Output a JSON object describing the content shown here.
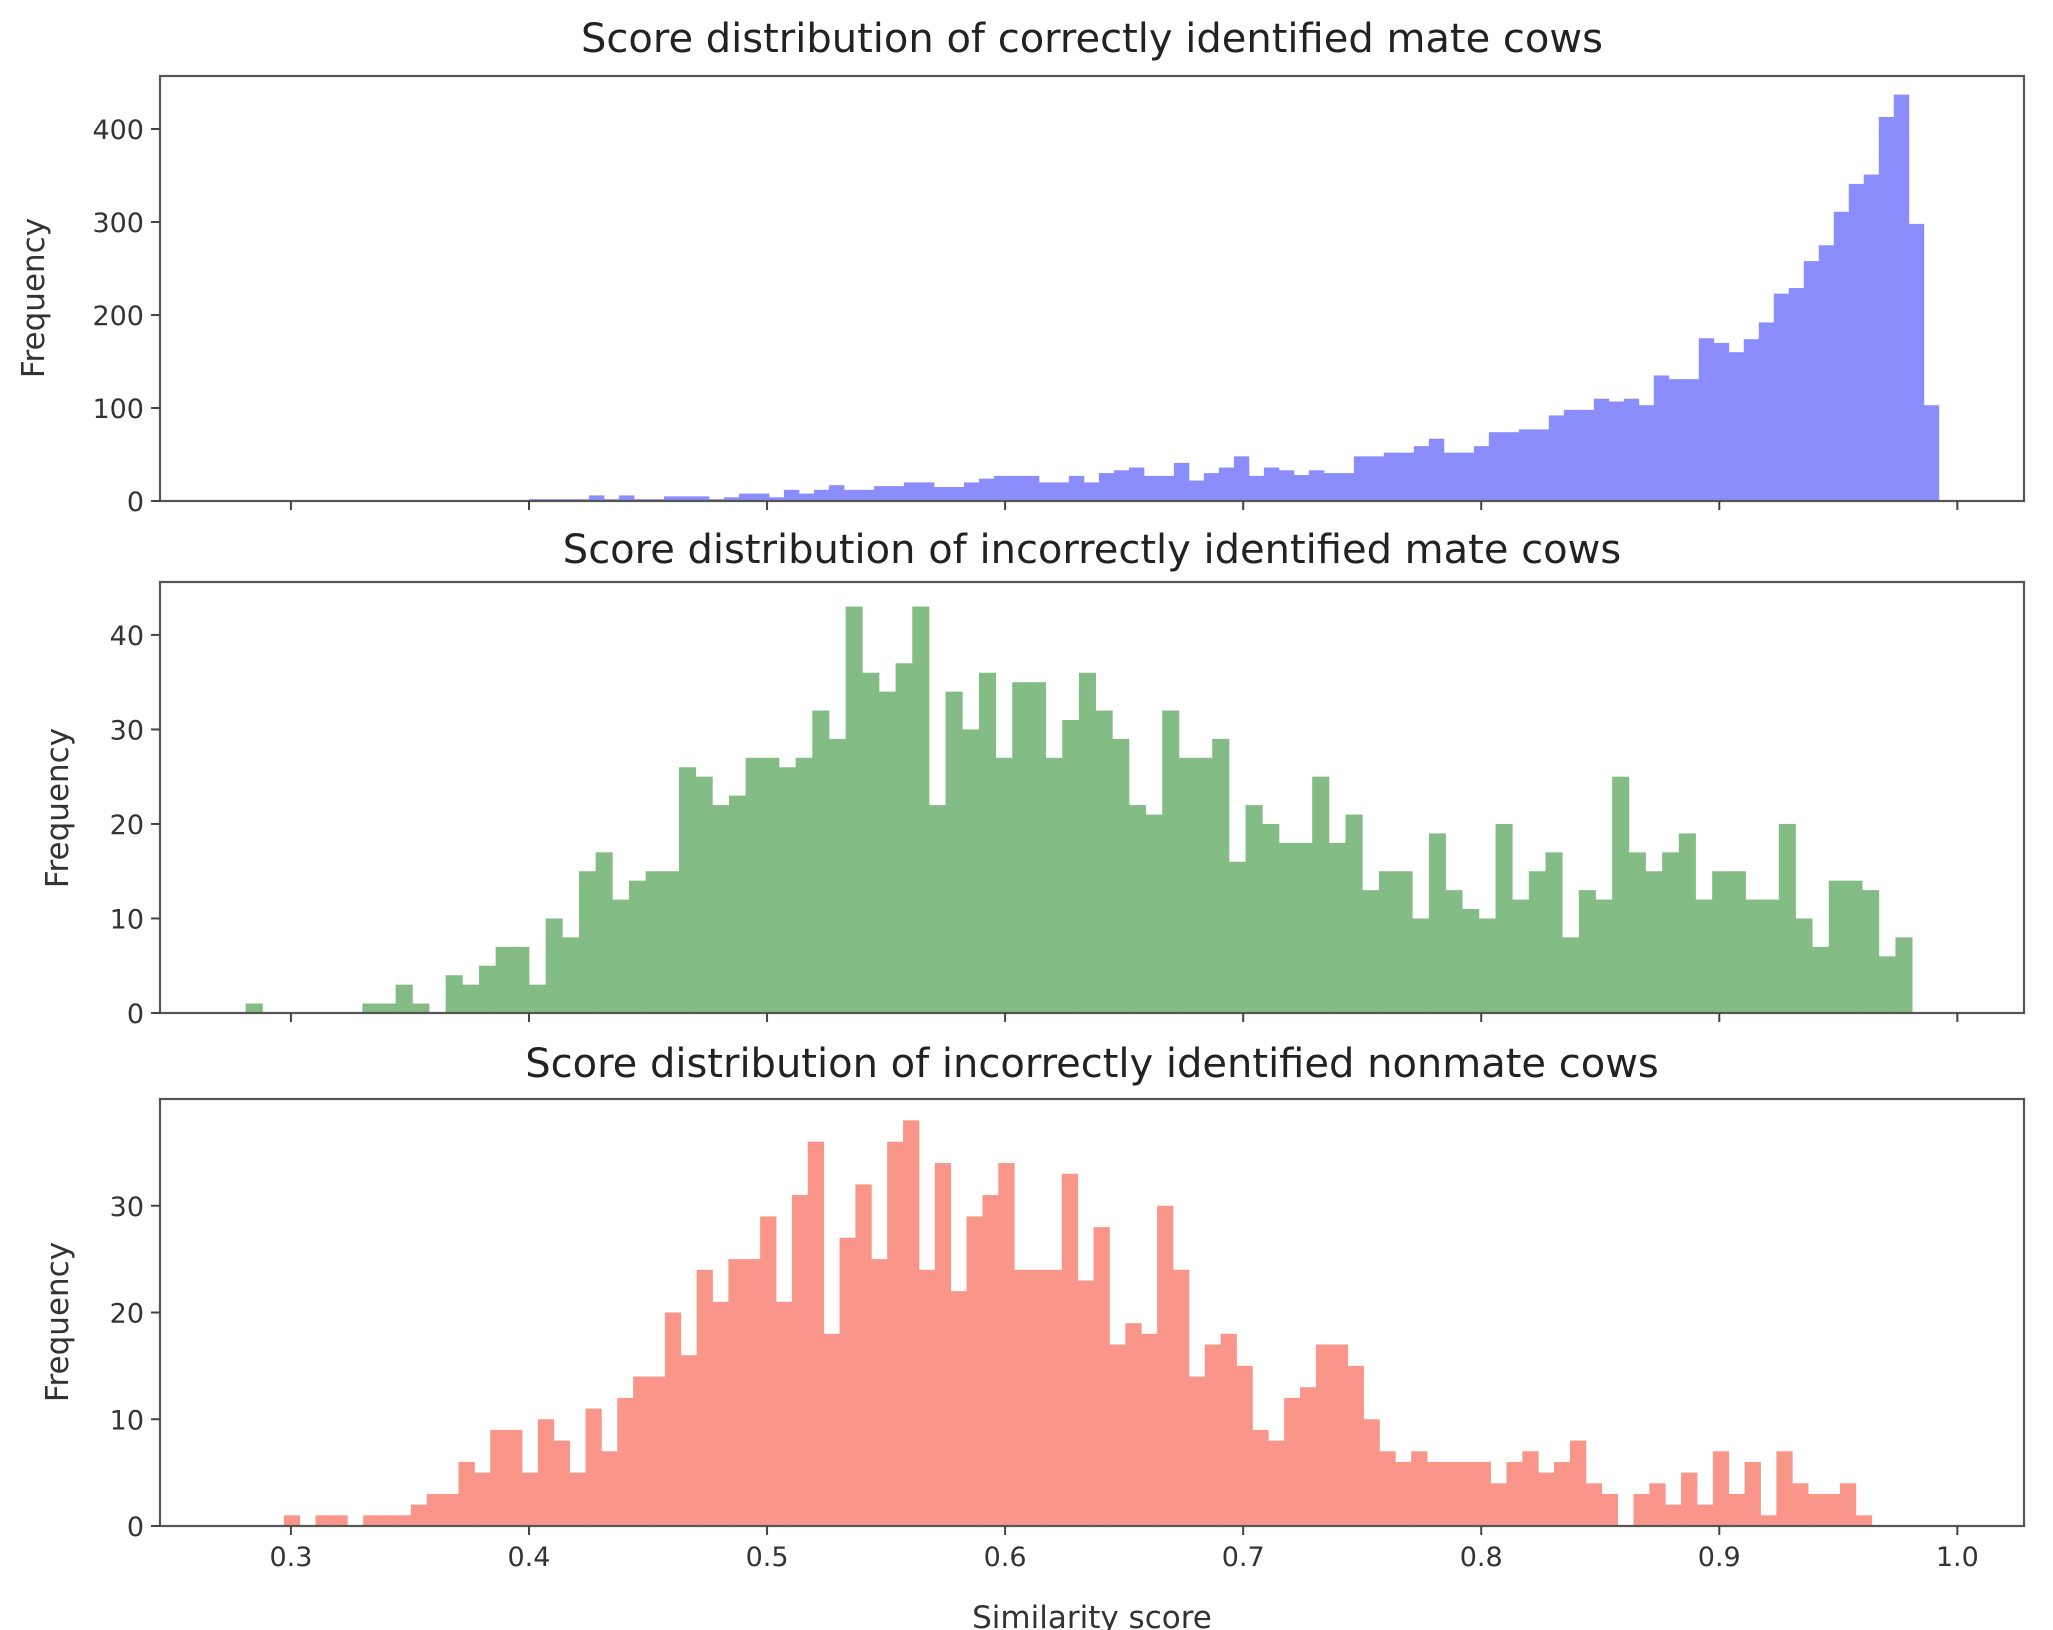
{
  "chart_data": [
    {
      "type": "bar",
      "title": "Score distribution of correctly identified mate cows",
      "xlabel": "",
      "ylabel": "Frequency",
      "xlim": [
        0.245,
        1.028
      ],
      "ylim": [
        0,
        457
      ],
      "xticks": [
        "0.3",
        "0.4",
        "0.5",
        "0.6",
        "0.7",
        "0.8",
        "0.9",
        "1.0"
      ],
      "show_xtick_labels": false,
      "yticks": [
        "0",
        "100",
        "200",
        "300",
        "400"
      ],
      "grid": false,
      "color": "#8b8dfc",
      "bin_start": 0.4,
      "bin_width": 0.0063,
      "values": [
        2,
        2,
        2,
        2,
        6,
        2,
        6,
        2,
        2,
        5,
        5,
        5,
        2,
        4,
        8,
        8,
        4,
        12,
        8,
        12,
        17,
        12,
        12,
        16,
        16,
        20,
        20,
        15,
        15,
        20,
        24,
        27,
        27,
        27,
        20,
        20,
        27,
        20,
        30,
        33,
        36,
        27,
        27,
        41,
        22,
        30,
        36,
        48,
        27,
        36,
        33,
        28,
        33,
        30,
        30,
        48,
        48,
        52,
        52,
        59,
        67,
        52,
        52,
        59,
        74,
        74,
        77,
        77,
        92,
        98,
        98,
        110,
        107,
        110,
        103,
        135,
        131,
        131,
        175,
        170,
        160,
        174,
        192,
        223,
        229,
        258,
        275,
        311,
        341,
        351,
        413,
        437,
        298,
        103
      ]
    },
    {
      "type": "bar",
      "title": "Score distribution of incorrectly identified mate cows",
      "xlabel": "",
      "ylabel": "Frequency",
      "xlim": [
        0.245,
        1.028
      ],
      "ylim": [
        0,
        45.6
      ],
      "xticks": [
        "0.3",
        "0.4",
        "0.5",
        "0.6",
        "0.7",
        "0.8",
        "0.9",
        "1.0"
      ],
      "show_xtick_labels": false,
      "yticks": [
        "0",
        "10",
        "20",
        "30",
        "40"
      ],
      "grid": false,
      "color": "#84bc86",
      "bin_start": 0.281,
      "bin_width": 0.007,
      "values": [
        1,
        0,
        0,
        0,
        0,
        0,
        0,
        1,
        1,
        3,
        1,
        0,
        4,
        3,
        5,
        7,
        7,
        3,
        10,
        8,
        15,
        17,
        12,
        14,
        15,
        15,
        26,
        25,
        22,
        23,
        27,
        27,
        26,
        27,
        32,
        29,
        43,
        36,
        34,
        37,
        43,
        22,
        34,
        30,
        36,
        27,
        35,
        35,
        27,
        31,
        36,
        32,
        29,
        22,
        21,
        32,
        27,
        27,
        29,
        16,
        22,
        20,
        18,
        18,
        25,
        18,
        21,
        13,
        15,
        15,
        10,
        19,
        13,
        11,
        10,
        20,
        12,
        15,
        17,
        8,
        13,
        12,
        25,
        17,
        15,
        17,
        19,
        12,
        15,
        15,
        12,
        12,
        20,
        10,
        7,
        14,
        14,
        13,
        6,
        8
      ]
    },
    {
      "type": "bar",
      "title": "Score distribution of incorrectly identified nonmate cows",
      "xlabel": "Similarity score",
      "ylabel": "Frequency",
      "xlim": [
        0.245,
        1.028
      ],
      "ylim": [
        0,
        40
      ],
      "xticks": [
        "0.3",
        "0.4",
        "0.5",
        "0.6",
        "0.7",
        "0.8",
        "0.9",
        "1.0"
      ],
      "show_xtick_labels": true,
      "yticks": [
        "0",
        "10",
        "20",
        "30"
      ],
      "grid": false,
      "color": "#f99689",
      "bin_start": 0.297,
      "bin_width": 0.00667,
      "values": [
        1,
        0,
        1,
        1,
        0,
        1,
        1,
        1,
        2,
        3,
        3,
        6,
        5,
        9,
        9,
        5,
        10,
        8,
        5,
        11,
        7,
        12,
        14,
        14,
        20,
        16,
        24,
        21,
        25,
        25,
        29,
        21,
        31,
        36,
        18,
        27,
        32,
        25,
        36,
        38,
        24,
        34,
        22,
        29,
        31,
        34,
        24,
        24,
        24,
        33,
        23,
        28,
        17,
        19,
        18,
        30,
        24,
        14,
        17,
        18,
        15,
        9,
        8,
        12,
        13,
        17,
        17,
        15,
        10,
        7,
        6,
        7,
        6,
        6,
        6,
        6,
        4,
        6,
        7,
        5,
        6,
        8,
        4,
        3,
        0,
        3,
        4,
        2,
        5,
        2,
        7,
        3,
        6,
        1,
        7,
        4,
        3,
        3,
        4,
        1
      ]
    }
  ]
}
